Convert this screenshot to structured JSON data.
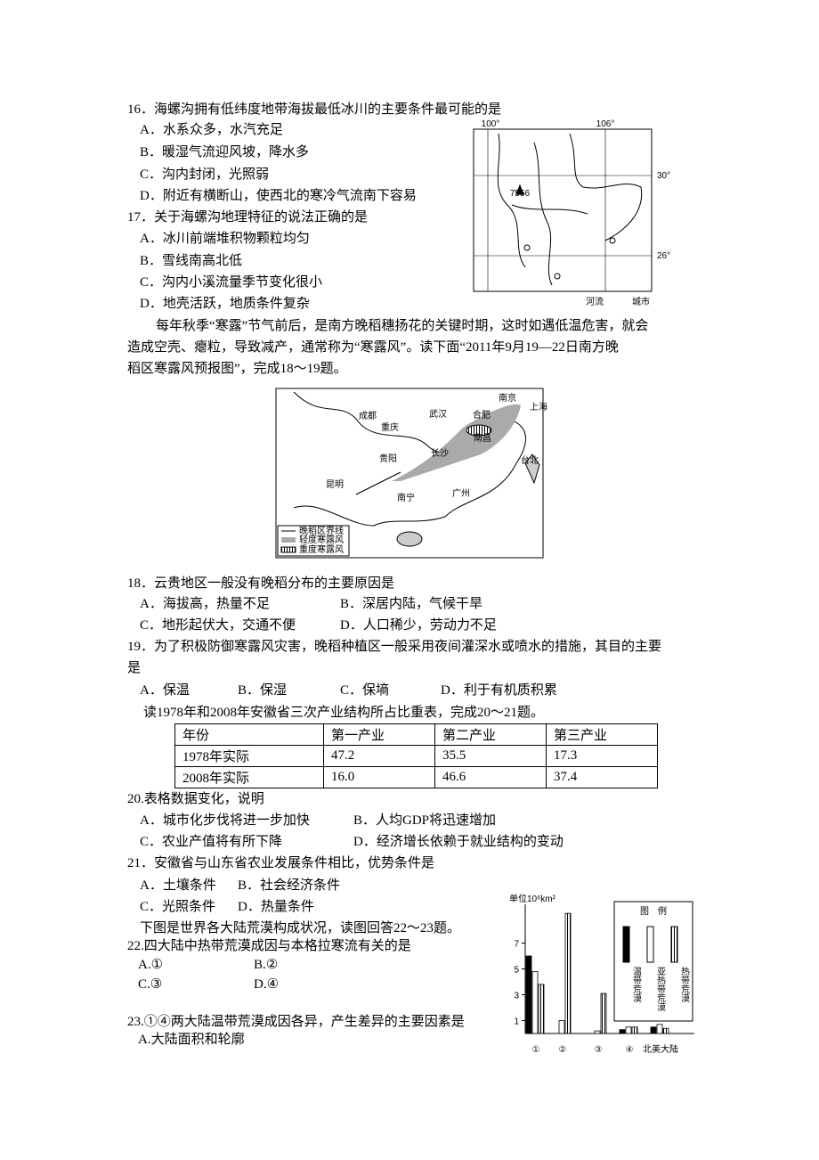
{
  "questions": [
    {
      "stem": [
        "16．海螺沟拥有低纬度地带海拔最低冰川的主要条件最可能的是"
      ],
      "options": [
        "A．水系众多，水汽充足",
        "B．暖湿气流迎风坡，降水多",
        "C．沟内封闭，光照弱",
        "D．附近有横断山，使西北的寒冷气流南下容易"
      ]
    },
    {
      "stem": [
        "17．关于海螺沟地理特征的说法正确的是"
      ],
      "options": [
        "A．冰川前端堆积物颗粒均匀",
        "B．雪线南高北低",
        "C．沟内小溪流量季节变化很小",
        "D．地壳活跃，地质条件复杂"
      ]
    },
    {
      "stem": [
        "18．云贵地区一般没有晚稻分布的主要原因是"
      ],
      "options": [
        "A．海拔高，热量不足",
        "B．深居内陆，气候干旱",
        "C．地形起伏大，交通不便",
        "D．人口稀少，劳动力不足"
      ]
    },
    {
      "stem": [
        "19．为了积极防御寒露风灾害，晚稻种植区一般采用夜间灌深水或喷水的措施，其目的主要",
        "是"
      ],
      "options": [
        "A．保温",
        "B．保湿",
        "C．保墒",
        "D．利于有机质积累"
      ]
    },
    {
      "stem": [
        "20.表格数据变化，说明"
      ],
      "options": [
        "A．城市化步伐将进一步加快",
        "B．人均GDP将迅速增加",
        "C．农业产值将有所下降",
        "D．经济增长依赖于就业结构的变动"
      ]
    },
    {
      "stem": [
        "21．安徽省与山东省农业发展条件相比，优势条件是"
      ],
      "options": [
        "A．土壤条件",
        "B．社会经济条件",
        "C．光照条件",
        "D．热量条件"
      ]
    },
    {
      "stem": [
        "22.四大陆中热带荒漠成因与本格拉寒流有关的是"
      ],
      "options": [
        "A.①",
        "B.②",
        "C.③",
        "D.④"
      ]
    },
    {
      "stem": [
        "23.①④两大陆温带荒漠成因各异，产生差异的主要因素是"
      ],
      "options": [
        "A.大陆面积和轮廓"
      ]
    }
  ],
  "passages": [
    [
      "每年秋季“寒露”节气前后，是南方晚稻穗扬花的关键时期，这时如遇低温危害，就会",
      "造成空壳、瘪粒，导致减产，通常称为“寒露风”。读下面“2011年9月19—22日南方晚",
      "稻区寒露风预报图”，完成18～19题。"
    ],
    [
      "读1978年和2008年安徽省三次产业结构所占比重表，完成20～21题。"
    ],
    [
      "下图是世界各大陆荒漠构成状况，读图回答22～23题。"
    ]
  ],
  "table": {
    "header": [
      "年份",
      "第一产业",
      "第二产业",
      "第三产业"
    ],
    "rows": [
      [
        "1978年实际",
        "47.2",
        "35.5",
        "17.3"
      ],
      [
        "2008年实际",
        "16.0",
        "46.6",
        "37.4"
      ]
    ]
  },
  "map1": {
    "labels": [
      "100°",
      "106°",
      "30°",
      "26°",
      "7556"
    ],
    "legend": [
      "河流",
      "城市"
    ]
  },
  "map2": {
    "cities": [
      "成都",
      "重庆",
      "贵阳",
      "昆明",
      "武汉",
      "合肥",
      "南京",
      "上海",
      "南昌",
      "长沙",
      "南宁",
      "广州",
      "台北"
    ],
    "legend": [
      "晚稻区界线",
      "轻度寒露风",
      "重度寒露风"
    ]
  },
  "desert_chart": {
    "unit": "单位10⁶km²",
    "categories": [
      "①",
      "②",
      "③",
      "④",
      "北美大陆"
    ],
    "legend_title": "图　例",
    "series": [
      {
        "name": "温带荒漠",
        "color": "#000000",
        "values": [
          6.0,
          null,
          null,
          0.3,
          0.5
        ]
      },
      {
        "name": "亚热带荒漠",
        "color": "#ffffff",
        "values": [
          4.8,
          1.0,
          0.2,
          0.5,
          0.7
        ]
      },
      {
        "name": "热带荒漠",
        "color": "#ffffff",
        "pattern": "hatch",
        "values": [
          3.8,
          9.3,
          3.1,
          0.5,
          0.4
        ]
      }
    ],
    "ylim": [
      0,
      10
    ],
    "yticks": [
      1,
      3,
      5,
      7
    ]
  }
}
